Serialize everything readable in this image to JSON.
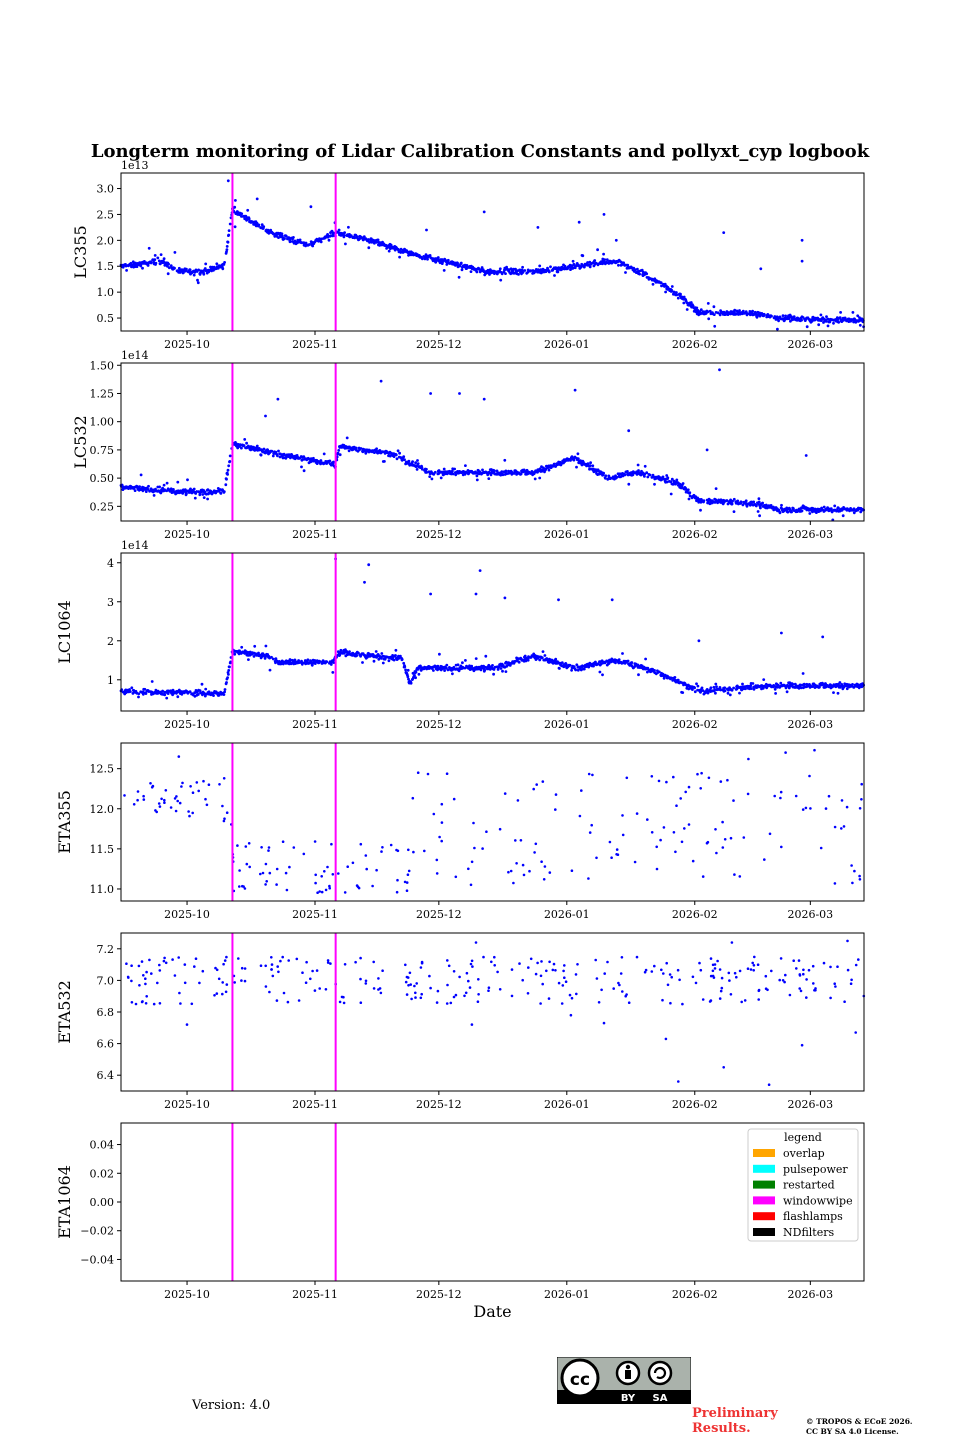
{
  "title": "Longterm monitoring of Lidar Calibration Constants and pollyxt_cyp logbook",
  "version_text": "Version: 4.0",
  "preliminary_line1": "Preliminary",
  "preliminary_line2": "Results.",
  "copyright_line1": "© TROPOS & ECoE 2026.",
  "copyright_line2": "CC BY SA 4.0 License.",
  "license_badge": {
    "cc": "cc",
    "by": "BY",
    "sa": "SA"
  },
  "colors": {
    "points": "#0000ff",
    "windowwipe": "#ff00ff",
    "prelim": "#ee3333"
  },
  "chart_data": {
    "type": "scatter",
    "xlabel": "Date",
    "x_ticks": [
      "2025-10",
      "2025-11",
      "2025-12",
      "2026-01",
      "2026-02",
      "2026-03"
    ],
    "x_tick_days": [
      16,
      47,
      77,
      108,
      139,
      167
    ],
    "x_range_days": [
      0,
      180
    ],
    "x_start_date": "2025-09-15",
    "events": [
      {
        "type": "windowwipe",
        "day": 27
      },
      {
        "type": "windowwipe",
        "day": 52
      }
    ],
    "legend": {
      "title": "legend",
      "items": [
        {
          "label": "overlap",
          "color": "#ffa500"
        },
        {
          "label": "pulsepower",
          "color": "#00ffff"
        },
        {
          "label": "restarted",
          "color": "#008000"
        },
        {
          "label": "windowwipe",
          "color": "#ff00ff"
        },
        {
          "label": "flashlamps",
          "color": "#ff0000"
        },
        {
          "label": "NDfilters",
          "color": "#000000"
        }
      ]
    },
    "panels": [
      {
        "ylabel": "LC355",
        "offset": "1e13",
        "ylim": [
          0.25,
          3.3
        ],
        "yticks": [
          0.5,
          1.0,
          1.5,
          2.0,
          2.5,
          3.0
        ],
        "ytick_labels": [
          "0.5",
          "1.0",
          "1.5",
          "2.0",
          "2.5",
          "3.0"
        ],
        "trend": [
          [
            0,
            1.5
          ],
          [
            10,
            1.6
          ],
          [
            14,
            1.4
          ],
          [
            20,
            1.4
          ],
          [
            25,
            1.5
          ],
          [
            27,
            2.6
          ],
          [
            35,
            2.2
          ],
          [
            45,
            1.9
          ],
          [
            52,
            2.15
          ],
          [
            60,
            2.0
          ],
          [
            68,
            1.8
          ],
          [
            78,
            1.6
          ],
          [
            88,
            1.4
          ],
          [
            100,
            1.4
          ],
          [
            110,
            1.5
          ],
          [
            120,
            1.6
          ],
          [
            130,
            1.2
          ],
          [
            136,
            0.9
          ],
          [
            140,
            0.6
          ],
          [
            152,
            0.6
          ],
          [
            160,
            0.5
          ],
          [
            180,
            0.45
          ]
        ],
        "extras": [
          [
            26,
            3.15
          ],
          [
            33,
            2.8
          ],
          [
            46,
            2.65
          ],
          [
            74,
            2.2
          ],
          [
            88,
            2.55
          ],
          [
            101,
            2.25
          ],
          [
            111,
            2.35
          ],
          [
            117,
            2.5
          ],
          [
            146,
            2.15
          ],
          [
            165,
            2.0
          ],
          [
            165,
            1.6
          ],
          [
            155,
            1.45
          ],
          [
            120,
            2.0
          ]
        ]
      },
      {
        "ylabel": "LC532",
        "offset": "1e14",
        "ylim": [
          0.12,
          1.52
        ],
        "yticks": [
          0.25,
          0.5,
          0.75,
          1.0,
          1.25,
          1.5
        ],
        "ytick_labels": [
          "0.25",
          "0.50",
          "0.75",
          "1.00",
          "1.25",
          "1.50"
        ],
        "trend": [
          [
            0,
            0.42
          ],
          [
            14,
            0.38
          ],
          [
            25,
            0.38
          ],
          [
            27,
            0.8
          ],
          [
            40,
            0.7
          ],
          [
            52,
            0.62
          ],
          [
            53,
            0.78
          ],
          [
            65,
            0.72
          ],
          [
            75,
            0.55
          ],
          [
            90,
            0.55
          ],
          [
            100,
            0.55
          ],
          [
            110,
            0.68
          ],
          [
            118,
            0.5
          ],
          [
            125,
            0.55
          ],
          [
            135,
            0.45
          ],
          [
            140,
            0.3
          ],
          [
            152,
            0.28
          ],
          [
            160,
            0.22
          ],
          [
            180,
            0.22
          ]
        ],
        "extras": [
          [
            35,
            1.05
          ],
          [
            38,
            1.2
          ],
          [
            63,
            1.36
          ],
          [
            75,
            1.25
          ],
          [
            82,
            1.25
          ],
          [
            88,
            1.2
          ],
          [
            110,
            1.28
          ],
          [
            123,
            0.92
          ],
          [
            145,
            1.46
          ],
          [
            142,
            0.75
          ],
          [
            166,
            0.7
          ]
        ]
      },
      {
        "ylabel": "LC1064",
        "offset": "1e14",
        "ylim": [
          0.2,
          4.25
        ],
        "yticks": [
          1,
          2,
          3,
          4
        ],
        "ytick_labels": [
          "1",
          "2",
          "3",
          "4"
        ],
        "trend": [
          [
            0,
            0.7
          ],
          [
            25,
            0.65
          ],
          [
            27,
            1.75
          ],
          [
            36,
            1.6
          ],
          [
            38,
            1.45
          ],
          [
            51,
            1.45
          ],
          [
            53,
            1.7
          ],
          [
            68,
            1.55
          ],
          [
            70,
            0.9
          ],
          [
            72,
            1.3
          ],
          [
            90,
            1.3
          ],
          [
            100,
            1.6
          ],
          [
            110,
            1.3
          ],
          [
            120,
            1.5
          ],
          [
            130,
            1.2
          ],
          [
            140,
            0.7
          ],
          [
            150,
            0.8
          ],
          [
            160,
            0.85
          ],
          [
            180,
            0.85
          ]
        ],
        "extras": [
          [
            52,
            4.1
          ],
          [
            60,
            3.95
          ],
          [
            59,
            3.5
          ],
          [
            87,
            3.8
          ],
          [
            86,
            3.2
          ],
          [
            75,
            3.2
          ],
          [
            93,
            3.1
          ],
          [
            106,
            3.05
          ],
          [
            119,
            3.05
          ],
          [
            140,
            2.0
          ],
          [
            160,
            2.2
          ],
          [
            170,
            2.1
          ]
        ]
      },
      {
        "ylabel": "ETA355",
        "offset": "",
        "ylim": [
          10.85,
          12.82
        ],
        "yticks": [
          11.0,
          11.5,
          12.0,
          12.5
        ],
        "ytick_labels": [
          "11.0",
          "11.5",
          "12.0",
          "12.5"
        ],
        "clusters": [
          {
            "from": 0,
            "to": 27,
            "min": 11.8,
            "max": 12.35,
            "n": 42
          },
          {
            "from": 27,
            "to": 70,
            "min": 10.95,
            "max": 11.6,
            "n": 70
          },
          {
            "from": 70,
            "to": 180,
            "min": 11.05,
            "max": 12.45,
            "n": 130
          }
        ],
        "extras": [
          [
            14,
            12.65
          ],
          [
            25,
            12.38
          ],
          [
            72,
            12.45
          ],
          [
            168,
            12.73
          ],
          [
            152,
            12.62
          ],
          [
            161,
            12.7
          ],
          [
            179,
            11.12
          ]
        ]
      },
      {
        "ylabel": "ETA532",
        "offset": "",
        "ylim": [
          6.3,
          7.3
        ],
        "yticks": [
          6.4,
          6.6,
          6.8,
          7.0,
          7.2
        ],
        "ytick_labels": [
          "6.4",
          "6.6",
          "6.8",
          "7.0",
          "7.2"
        ],
        "clusters": [
          {
            "from": 0,
            "to": 180,
            "min": 6.85,
            "max": 7.15,
            "n": 300
          }
        ],
        "extras": [
          [
            16,
            6.72
          ],
          [
            85,
            6.72
          ],
          [
            109,
            6.78
          ],
          [
            117,
            6.73
          ],
          [
            132,
            6.63
          ],
          [
            135,
            6.36
          ],
          [
            146,
            6.45
          ],
          [
            157,
            6.34
          ],
          [
            165,
            6.59
          ],
          [
            178,
            6.67
          ],
          [
            86,
            7.24
          ],
          [
            148,
            7.24
          ],
          [
            176,
            7.25
          ]
        ]
      },
      {
        "ylabel": "ETA1064",
        "offset": "",
        "ylim": [
          -0.055,
          0.055
        ],
        "yticks": [
          -0.04,
          -0.02,
          0.0,
          0.02,
          0.04
        ],
        "ytick_labels": [
          "−0.04",
          "−0.02",
          "0.00",
          "0.02",
          "0.04"
        ],
        "empty": true
      }
    ]
  }
}
